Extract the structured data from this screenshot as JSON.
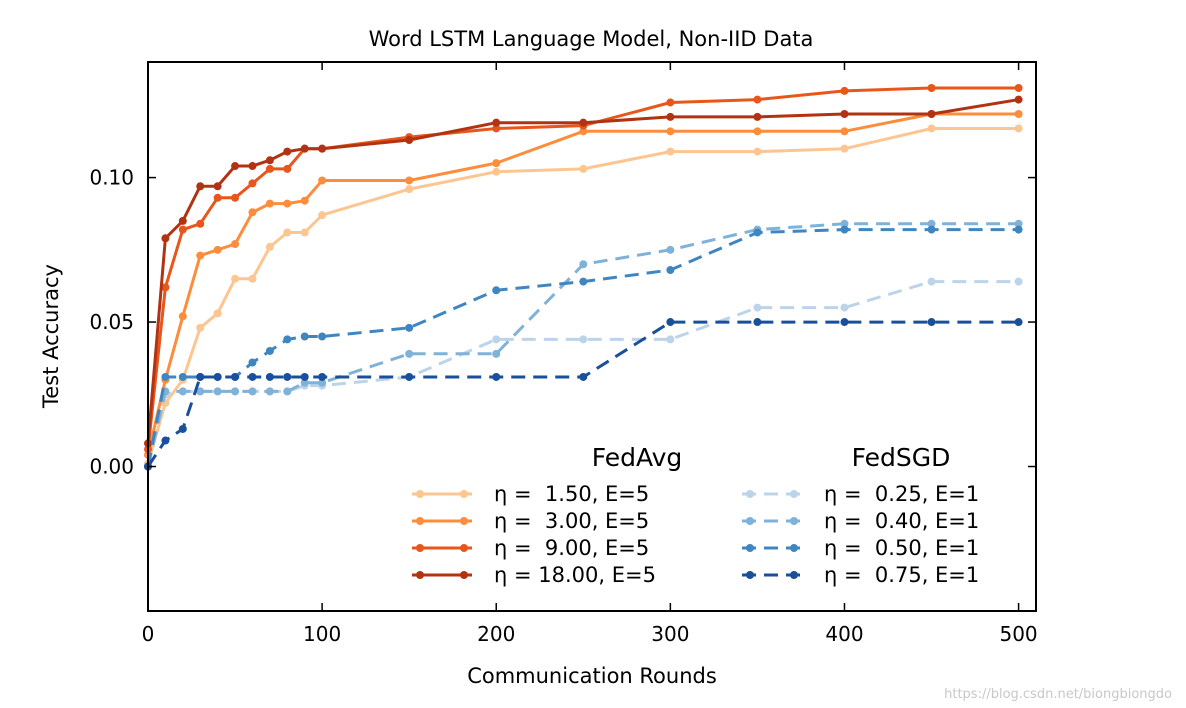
{
  "chart_data": {
    "type": "line",
    "title": "Word LSTM Language Model, Non-IID Data",
    "xlabel": "Communication Rounds",
    "ylabel": "Test Accuracy",
    "xlim": [
      0,
      510
    ],
    "ylim": [
      -0.05,
      0.14
    ],
    "xticks": [
      0,
      100,
      200,
      300,
      400,
      500
    ],
    "xtick_labels": [
      "0",
      "100",
      "200",
      "300",
      "400",
      "500"
    ],
    "yticks": [
      0.0,
      0.05,
      0.1
    ],
    "ytick_labels": [
      "0.00",
      "0.05",
      "0.10"
    ],
    "grid": false,
    "legend": {
      "placement": "lower-right",
      "columns": [
        {
          "title": "FedAvg",
          "entries": [
            "η =  1.50, E=5",
            "η =  3.00, E=5",
            "η =  9.00, E=5",
            "η = 18.00, E=5"
          ]
        },
        {
          "title": "FedSGD",
          "entries": [
            "η =  0.25, E=1",
            "η =  0.40, E=1",
            "η =  0.50, E=1",
            "η =  0.75, E=1"
          ]
        }
      ]
    },
    "series": [
      {
        "name": "η =  1.50, E=5",
        "color": "#fdc590",
        "dashed": false,
        "x": [
          0,
          10,
          20,
          30,
          40,
          50,
          60,
          70,
          80,
          90,
          100,
          150,
          200,
          250,
          300,
          350,
          400,
          450,
          500
        ],
        "y": [
          0.001,
          0.022,
          0.03,
          0.048,
          0.053,
          0.065,
          0.065,
          0.076,
          0.081,
          0.081,
          0.087,
          0.096,
          0.102,
          0.103,
          0.109,
          0.109,
          0.11,
          0.117,
          0.117
        ]
      },
      {
        "name": "η =  3.00, E=5",
        "color": "#fb8d3d",
        "dashed": false,
        "x": [
          0,
          10,
          20,
          30,
          40,
          50,
          60,
          70,
          80,
          90,
          100,
          150,
          200,
          250,
          300,
          350,
          400,
          450,
          500
        ],
        "y": [
          0.004,
          0.03,
          0.052,
          0.073,
          0.075,
          0.077,
          0.088,
          0.091,
          0.091,
          0.092,
          0.099,
          0.099,
          0.105,
          0.116,
          0.116,
          0.116,
          0.116,
          0.122,
          0.122
        ]
      },
      {
        "name": "η =  9.00, E=5",
        "color": "#e8561b",
        "dashed": false,
        "x": [
          0,
          10,
          20,
          30,
          40,
          50,
          60,
          70,
          80,
          90,
          100,
          150,
          200,
          250,
          300,
          350,
          400,
          450,
          500
        ],
        "y": [
          0.006,
          0.062,
          0.082,
          0.084,
          0.093,
          0.093,
          0.098,
          0.103,
          0.103,
          0.11,
          0.11,
          0.114,
          0.117,
          0.118,
          0.126,
          0.127,
          0.13,
          0.131,
          0.131
        ]
      },
      {
        "name": "η = 18.00, E=5",
        "color": "#b23312",
        "dashed": false,
        "x": [
          0,
          10,
          20,
          30,
          40,
          50,
          60,
          70,
          80,
          90,
          100,
          150,
          200,
          250,
          300,
          350,
          400,
          450,
          500
        ],
        "y": [
          0.008,
          0.079,
          0.085,
          0.097,
          0.097,
          0.104,
          0.104,
          0.106,
          0.109,
          0.11,
          0.11,
          0.113,
          0.119,
          0.119,
          0.121,
          0.121,
          0.122,
          0.122,
          0.127
        ]
      },
      {
        "name": "η =  0.25, E=1",
        "color": "#bcd4ea",
        "dashed": true,
        "x": [
          0,
          10,
          20,
          30,
          40,
          50,
          60,
          70,
          80,
          90,
          100,
          150,
          200,
          250,
          300,
          350,
          400,
          450,
          500
        ],
        "y": [
          0.0,
          0.025,
          0.026,
          0.026,
          0.026,
          0.026,
          0.026,
          0.026,
          0.026,
          0.028,
          0.028,
          0.031,
          0.044,
          0.044,
          0.044,
          0.055,
          0.055,
          0.064,
          0.064
        ]
      },
      {
        "name": "η =  0.40, E=1",
        "color": "#7fb2d8",
        "dashed": true,
        "x": [
          0,
          10,
          20,
          30,
          40,
          50,
          60,
          70,
          80,
          90,
          100,
          150,
          200,
          250,
          300,
          350,
          400,
          450,
          500
        ],
        "y": [
          0.0,
          0.026,
          0.026,
          0.026,
          0.026,
          0.026,
          0.026,
          0.026,
          0.026,
          0.029,
          0.029,
          0.039,
          0.039,
          0.07,
          0.075,
          0.082,
          0.084,
          0.084,
          0.084
        ]
      },
      {
        "name": "η =  0.50, E=1",
        "color": "#3f86c1",
        "dashed": true,
        "x": [
          0,
          10,
          20,
          30,
          40,
          50,
          60,
          70,
          80,
          90,
          100,
          150,
          200,
          250,
          300,
          350,
          400,
          450,
          500
        ],
        "y": [
          0.0,
          0.031,
          0.031,
          0.031,
          0.031,
          0.031,
          0.036,
          0.04,
          0.044,
          0.045,
          0.045,
          0.048,
          0.061,
          0.064,
          0.068,
          0.081,
          0.082,
          0.082,
          0.082
        ]
      },
      {
        "name": "η =  0.75, E=1",
        "color": "#1a4f9c",
        "dashed": true,
        "x": [
          0,
          10,
          20,
          30,
          40,
          50,
          60,
          70,
          80,
          90,
          100,
          150,
          200,
          250,
          300,
          350,
          400,
          450,
          500
        ],
        "y": [
          0.0,
          0.009,
          0.013,
          0.031,
          0.031,
          0.031,
          0.031,
          0.031,
          0.031,
          0.031,
          0.031,
          0.031,
          0.031,
          0.031,
          0.05,
          0.05,
          0.05,
          0.05,
          0.05
        ]
      }
    ]
  },
  "watermark": "https://blog.csdn.net/biongbiongdo"
}
